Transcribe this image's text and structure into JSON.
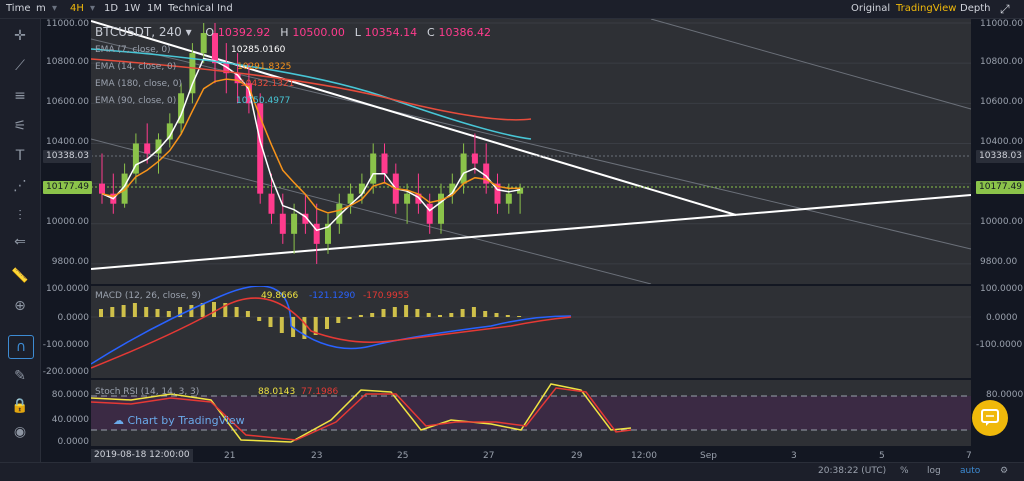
{
  "toolbar": {
    "items": [
      "Time",
      "m",
      "4H",
      "1D",
      "1W",
      "1M",
      "Technical Ind"
    ],
    "right": [
      "Original",
      "TradingView",
      "Depth"
    ]
  },
  "main": {
    "symbol": "BTCUSDT",
    "interval": "240",
    "ohlc": {
      "o_label": "O",
      "o": "10392.92",
      "h_label": "H",
      "h": "10500.00",
      "l_label": "L",
      "l": "10354.14",
      "c_label": "C",
      "c": "10386.42"
    },
    "ema": [
      {
        "label": "EMA (7, close, 0)",
        "value": "10285.0160",
        "color": "#ffffff"
      },
      {
        "label": "EMA (14, close, 0)",
        "value": "10291.8325",
        "color": "#f7931a"
      },
      {
        "label": "EMA (180, close, 0)",
        "value": "10432.1321",
        "color": "#e74c3c"
      },
      {
        "label": "EMA (90, close, 0)",
        "value": "10750.4977",
        "color": "#48c6d6"
      }
    ],
    "y_ticks": [
      "11000.00",
      "10800.00",
      "10600.00",
      "10400.00",
      "10200.00",
      "10000.00",
      "9800.00"
    ],
    "price_tag_upper": "10338.03",
    "price_tag_current": "10177.49"
  },
  "macd": {
    "label": "MACD (12, 26, close, 9)",
    "v1": "49.8666",
    "v2": "-121.1290",
    "v3": "-170.9955",
    "y_ticks": [
      "100.0000",
      "0.0000",
      "-100.0000",
      "-200.0000"
    ]
  },
  "stoch": {
    "label": "Stoch RSI (14, 14, 3, 3)",
    "v1": "88.0143",
    "v2": "77.1986",
    "y_ticks": [
      "80.0000",
      "40.0000",
      "0.0000"
    ]
  },
  "watermark": "Chart by TradingView",
  "x_axis": {
    "labels": [
      "21",
      "23",
      "25",
      "27",
      "29",
      "12:00",
      "Sep",
      "3",
      "5",
      "7"
    ],
    "cursor_label": "2019-08-18 12:00:00"
  },
  "status": {
    "time": "20:38:22 (UTC)",
    "pct": "%",
    "log": "log",
    "auto": "auto"
  },
  "colors": {
    "up": "#8bc34a",
    "down": "#ff3b8d",
    "ema7": "#ffffff",
    "ema14": "#f7931a",
    "ema180": "#e74c3c",
    "ema90": "#48c6d6",
    "macd": "#2962ff",
    "signal": "#e53935",
    "stochK": "#f0e442",
    "stochD": "#e53935",
    "accent": "#f0b90b"
  },
  "chart_data": {
    "type": "candlestick",
    "candles": [
      [
        10200,
        10350,
        10100,
        10150
      ],
      [
        10150,
        10250,
        10050,
        10100
      ],
      [
        10100,
        10300,
        10080,
        10250
      ],
      [
        10250,
        10450,
        10200,
        10400
      ],
      [
        10400,
        10500,
        10300,
        10350
      ],
      [
        10350,
        10450,
        10250,
        10420
      ],
      [
        10420,
        10550,
        10380,
        10500
      ],
      [
        10500,
        10700,
        10450,
        10650
      ],
      [
        10650,
        10900,
        10600,
        10850
      ],
      [
        10850,
        11000,
        10800,
        10950
      ],
      [
        10950,
        11000,
        10700,
        10800
      ],
      [
        10800,
        10900,
        10650,
        10750
      ],
      [
        10750,
        10850,
        10600,
        10700
      ],
      [
        10700,
        10800,
        10550,
        10600
      ],
      [
        10600,
        10650,
        10100,
        10150
      ],
      [
        10150,
        10250,
        10000,
        10050
      ],
      [
        10050,
        10150,
        9900,
        9950
      ],
      [
        9950,
        10100,
        9850,
        10050
      ],
      [
        10050,
        10150,
        9950,
        10000
      ],
      [
        10000,
        10100,
        9800,
        9900
      ],
      [
        9900,
        10050,
        9850,
        10000
      ],
      [
        10000,
        10150,
        9950,
        10100
      ],
      [
        10100,
        10200,
        10050,
        10150
      ],
      [
        10150,
        10250,
        10100,
        10200
      ],
      [
        10200,
        10400,
        10150,
        10350
      ],
      [
        10350,
        10400,
        10200,
        10250
      ],
      [
        10250,
        10300,
        10050,
        10100
      ],
      [
        10100,
        10200,
        10000,
        10150
      ],
      [
        10150,
        10250,
        10050,
        10100
      ],
      [
        10100,
        10150,
        9950,
        10000
      ],
      [
        10000,
        10200,
        9950,
        10150
      ],
      [
        10150,
        10250,
        10100,
        10200
      ],
      [
        10200,
        10400,
        10150,
        10350
      ],
      [
        10350,
        10450,
        10250,
        10300
      ],
      [
        10300,
        10400,
        10150,
        10200
      ],
      [
        10200,
        10250,
        10050,
        10100
      ],
      [
        10100,
        10200,
        10050,
        10150
      ],
      [
        10150,
        10200,
        10050,
        10180
      ]
    ]
  }
}
